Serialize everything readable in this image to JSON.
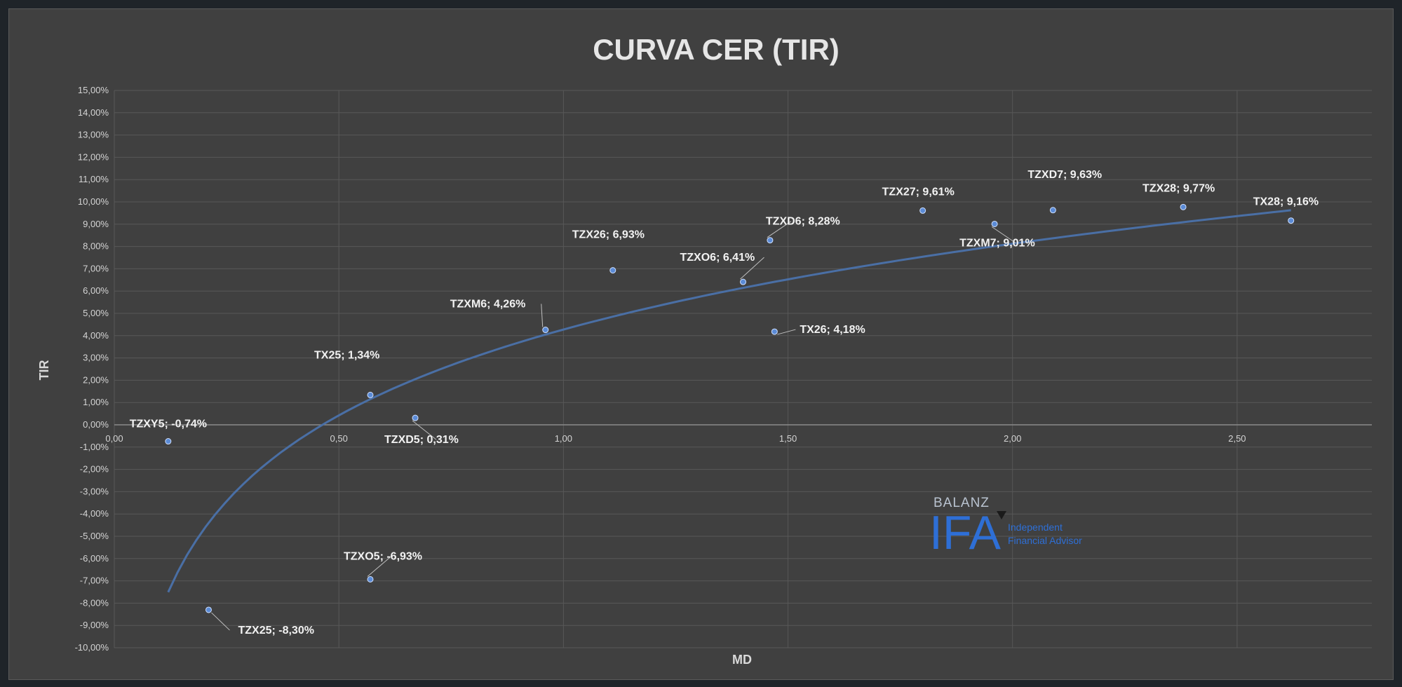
{
  "chart_data": {
    "type": "scatter",
    "title": "CURVA CER (TIR)",
    "xlabel": "MD",
    "ylabel": "TIR",
    "xlim": [
      0,
      2.8
    ],
    "ylim": [
      -10,
      15
    ],
    "x_ticks": [
      0,
      0.5,
      1,
      1.5,
      2,
      2.5
    ],
    "x_tick_labels": [
      "0,00",
      "0,50",
      "1,00",
      "1,50",
      "2,00",
      "2,50"
    ],
    "y_ticks": [
      15,
      14,
      13,
      12,
      11,
      10,
      9,
      8,
      7,
      6,
      5,
      4,
      3,
      2,
      1,
      0,
      -1,
      -2,
      -3,
      -4,
      -5,
      -6,
      -7,
      -8,
      -9,
      -10
    ],
    "y_tick_labels": [
      "15,00%",
      "14,00%",
      "13,00%",
      "12,00%",
      "11,00%",
      "10,00%",
      "9,00%",
      "8,00%",
      "7,00%",
      "6,00%",
      "5,00%",
      "4,00%",
      "3,00%",
      "2,00%",
      "1,00%",
      "0,00%",
      "-1,00%",
      "-2,00%",
      "-3,00%",
      "-4,00%",
      "-5,00%",
      "-6,00%",
      "-7,00%",
      "-8,00%",
      "-9,00%",
      "-10,00%"
    ],
    "grid": true,
    "colors": {
      "background": "#404040",
      "point": "#5b8bd6",
      "trendline": "#4a6fa5",
      "grid": "#585858",
      "axis": "#8a8a8a"
    },
    "points": [
      {
        "name": "TZXY5",
        "x": 0.12,
        "y": -0.74,
        "label": "TZXY5; -0,74%"
      },
      {
        "name": "TZX25",
        "x": 0.21,
        "y": -8.3,
        "label": "TZX25; -8,30%"
      },
      {
        "name": "TZXO5",
        "x": 0.57,
        "y": -6.93,
        "label": "TZXO5; -6,93%"
      },
      {
        "name": "TX25",
        "x": 0.57,
        "y": 1.34,
        "label": "TX25; 1,34%"
      },
      {
        "name": "TZXD5",
        "x": 0.67,
        "y": 0.31,
        "label": "TZXD5; 0,31%"
      },
      {
        "name": "TZXM6",
        "x": 0.96,
        "y": 4.26,
        "label": "TZXM6; 4,26%"
      },
      {
        "name": "TZX26",
        "x": 1.11,
        "y": 6.93,
        "label": "TZX26; 6,93%"
      },
      {
        "name": "TZXO6",
        "x": 1.4,
        "y": 6.41,
        "label": "TZXO6; 6,41%"
      },
      {
        "name": "TZXD6",
        "x": 1.46,
        "y": 8.28,
        "label": "TZXD6; 8,28%"
      },
      {
        "name": "TX26",
        "x": 1.47,
        "y": 4.18,
        "label": "TX26; 4,18%"
      },
      {
        "name": "TZX27",
        "x": 1.8,
        "y": 9.61,
        "label": "TZX27; 9,61%"
      },
      {
        "name": "TZXM7",
        "x": 1.96,
        "y": 9.01,
        "label": "TZXM7; 9,01%"
      },
      {
        "name": "TZXD7",
        "x": 2.09,
        "y": 9.63,
        "label": "TZXD7; 9,63%"
      },
      {
        "name": "TZX28",
        "x": 2.38,
        "y": 9.77,
        "label": "TZX28; 9,77%"
      },
      {
        "name": "TX28",
        "x": 2.62,
        "y": 9.16,
        "label": "TX28; 9,16%"
      }
    ],
    "trendline": {
      "type": "logarithmic",
      "x_range": [
        0.12,
        2.62
      ]
    }
  },
  "watermark": {
    "brand_small": "BALANZ",
    "brand_big": "IFA",
    "subtitle_line1": "Independent",
    "subtitle_line2": "Financial Advisor"
  }
}
